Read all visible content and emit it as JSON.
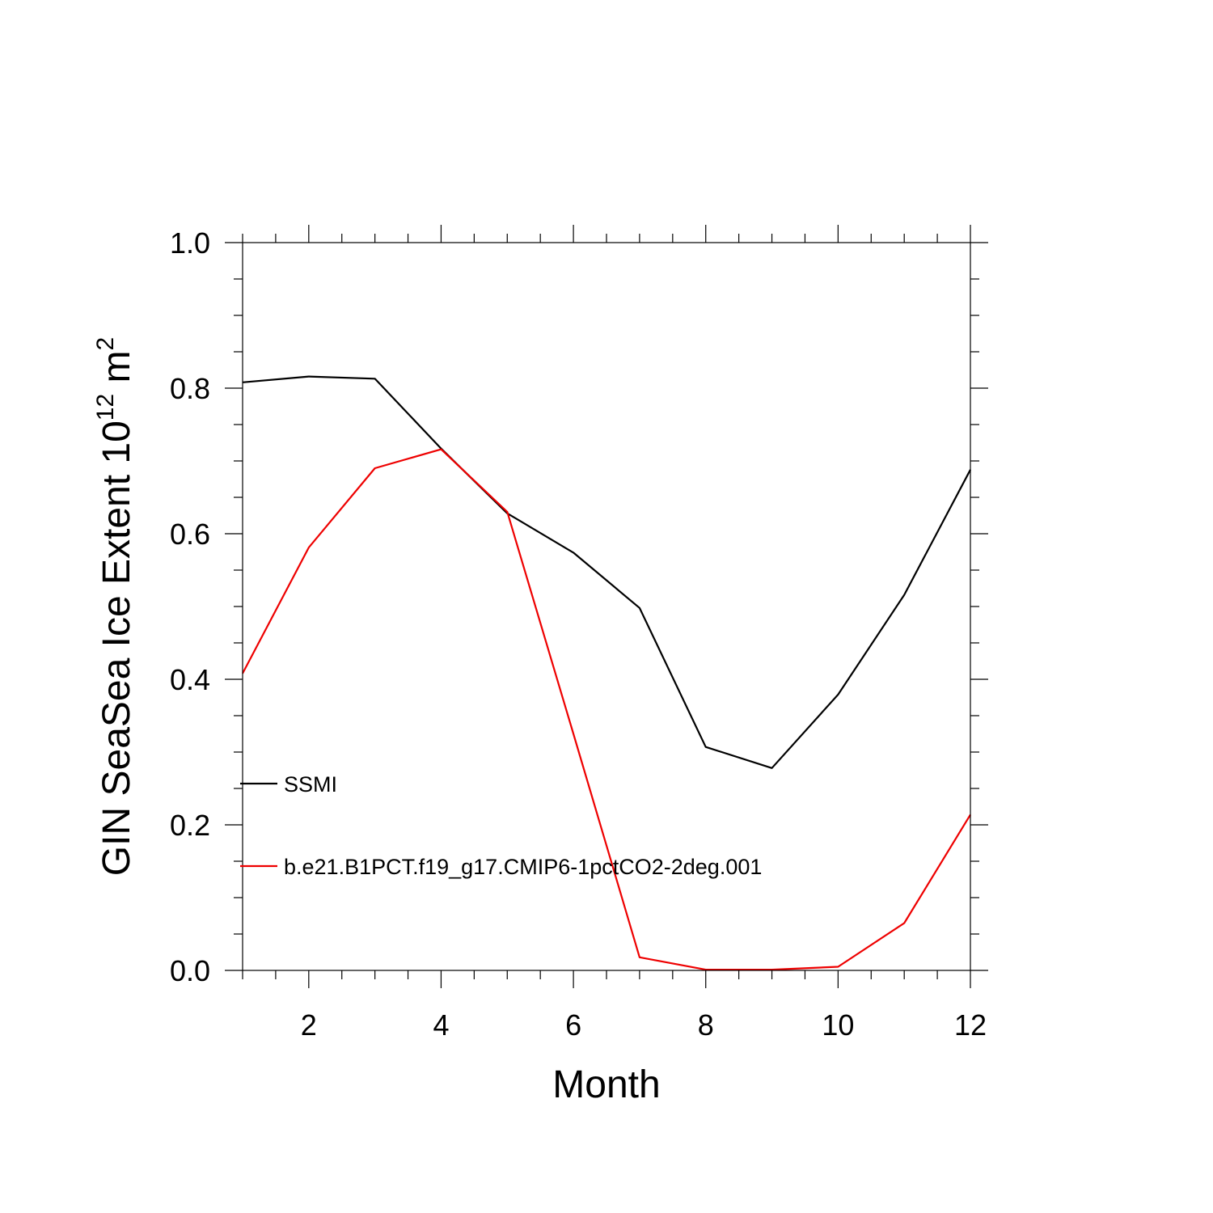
{
  "chart_data": {
    "type": "line",
    "title": "",
    "xlabel": "Month",
    "ylabel": {
      "base": "GIN SeaSea Ice Extent 10",
      "exp1": "12",
      "unit": " m",
      "exp2": "2"
    },
    "xlim": [
      1,
      12
    ],
    "ylim": [
      0,
      1
    ],
    "x": [
      1,
      2,
      3,
      4,
      5,
      6,
      7,
      8,
      9,
      10,
      11,
      12
    ],
    "x_ticks": [
      2,
      4,
      6,
      8,
      10,
      12
    ],
    "x_tick_labels": [
      "2",
      "4",
      "6",
      "8",
      "10",
      "12"
    ],
    "y_ticks": [
      0,
      0.2,
      0.4,
      0.6,
      0.8,
      1.0
    ],
    "y_tick_labels": [
      "0.0",
      "0.2",
      "0.4",
      "0.6",
      "0.8",
      "1.0"
    ],
    "grid": false,
    "legend_position": "left",
    "series": [
      {
        "name": "SSMI",
        "color": "#000000",
        "values": [
          0.808,
          0.816,
          0.813,
          0.717,
          0.628,
          0.574,
          0.498,
          0.307,
          0.278,
          0.379,
          0.516,
          0.688
        ]
      },
      {
        "name": "b.e21.B1PCT.f19_g17.CMIP6-1pctCO2-2deg.001",
        "color": "#ee0000",
        "values": [
          0.408,
          0.581,
          0.69,
          0.716,
          0.63,
          0.325,
          0.018,
          0.001,
          0.001,
          0.005,
          0.065,
          0.214
        ]
      }
    ]
  }
}
